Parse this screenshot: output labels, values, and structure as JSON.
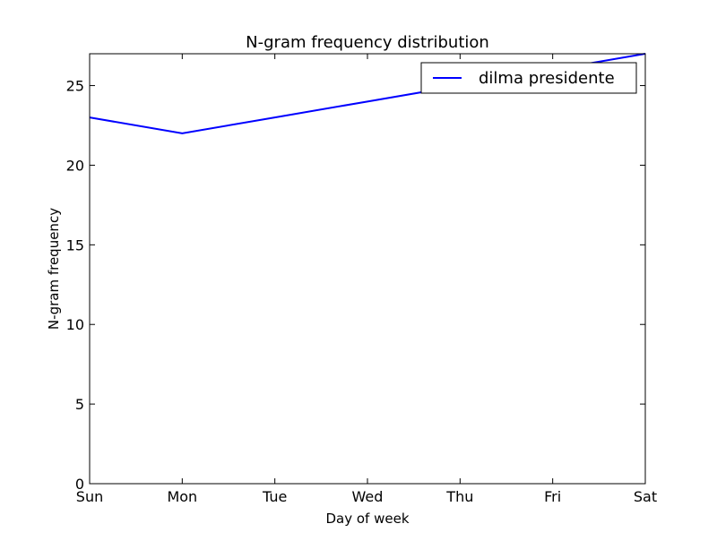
{
  "chart_data": {
    "type": "line",
    "title": "N-gram frequency distribution",
    "xlabel": "Day of week",
    "ylabel": "N-gram frequency",
    "categories": [
      "Sun",
      "Mon",
      "Tue",
      "Wed",
      "Thu",
      "Fri",
      "Sat"
    ],
    "yticks": [
      0,
      5,
      10,
      15,
      20,
      25
    ],
    "ylim": [
      0,
      27
    ],
    "grid": false,
    "legend_position": "top-right",
    "series": [
      {
        "name": "dilma presidente",
        "values": [
          23,
          22,
          23,
          24,
          25,
          26,
          27
        ],
        "color": "#0000ff"
      }
    ]
  }
}
